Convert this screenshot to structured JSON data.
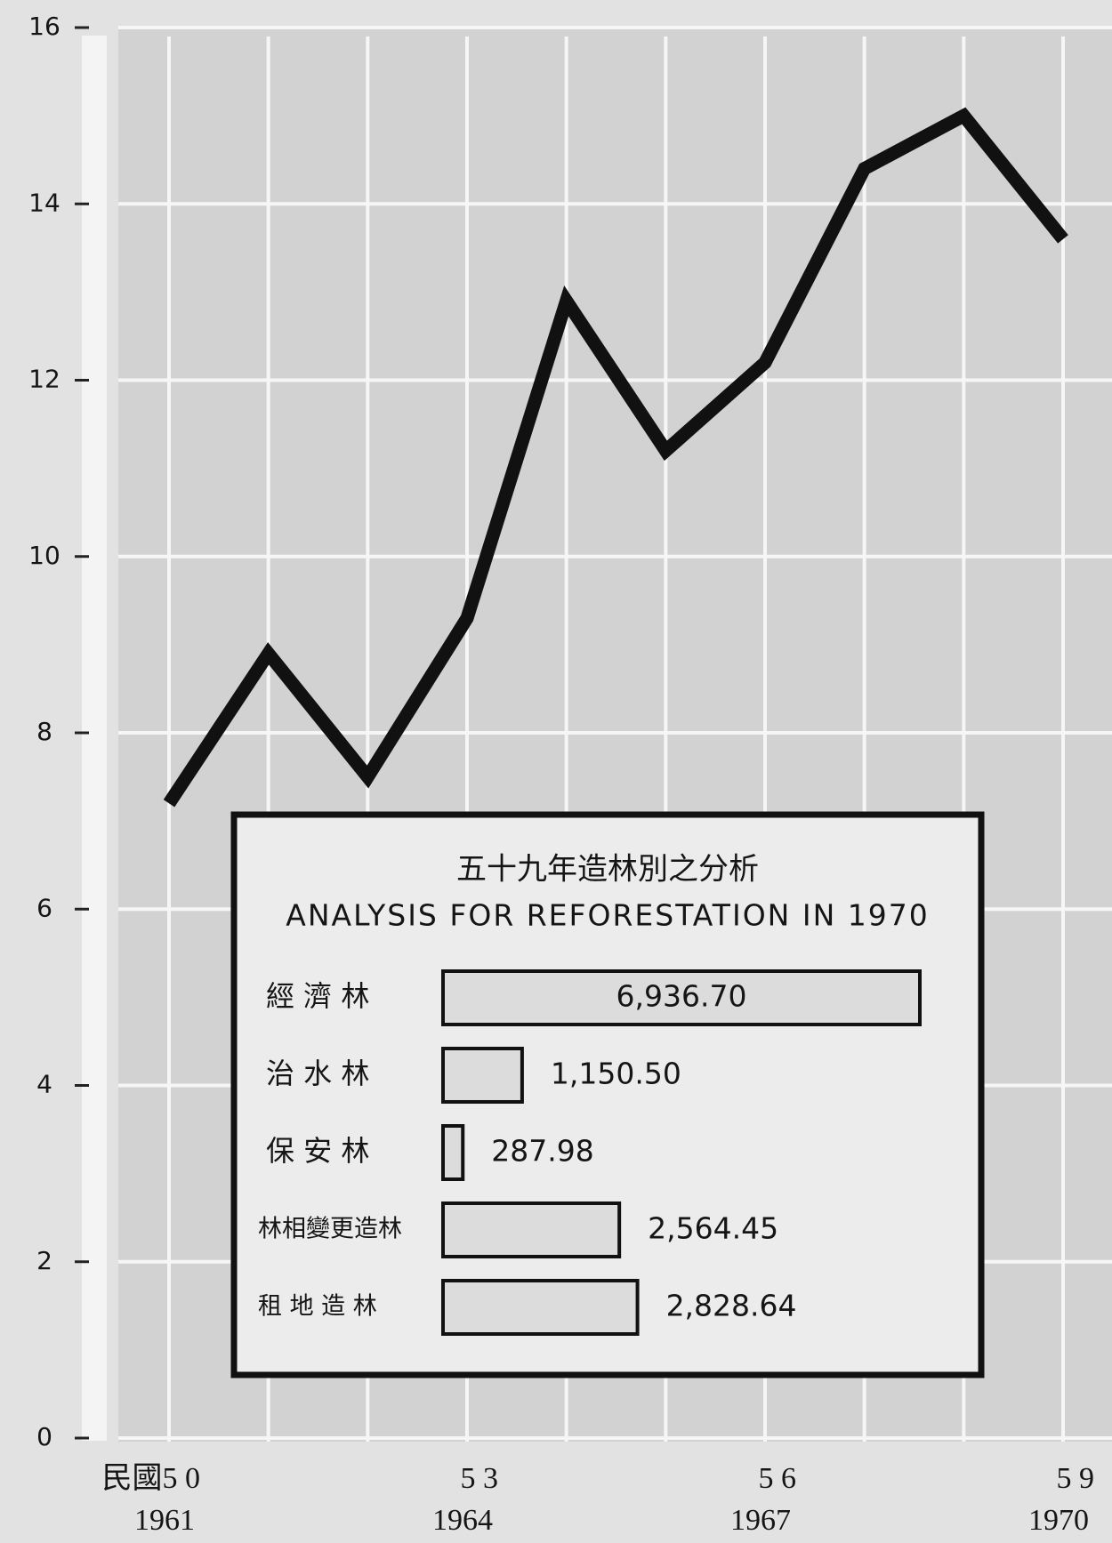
{
  "chart_data": [
    {
      "type": "line",
      "categories": [
        "1961",
        null,
        null,
        "1964",
        null,
        null,
        "1967",
        null,
        null,
        "1970"
      ],
      "roc_labels": [
        "民國5 0",
        null,
        null,
        "5 3",
        null,
        null,
        "5 6",
        null,
        null,
        "5 9"
      ],
      "series": [
        {
          "color": "#111111",
          "values": [
            7.2,
            8.9,
            7.5,
            9.3,
            12.9,
            11.2,
            12.2,
            14.4,
            15.0,
            13.6
          ]
        }
      ],
      "ylim": [
        0,
        16
      ],
      "yticks": [
        0,
        2,
        4,
        6,
        8,
        10,
        12,
        14,
        16
      ],
      "grid": true
    },
    {
      "type": "bar",
      "title": "五十九年造林別之分析",
      "subtitle": "ANALYSIS FOR REFORESTATION IN 1970",
      "categories": [
        "經 濟 林",
        "治 水 林",
        "保 安 林",
        "林相變更造林",
        "租 地 造 林"
      ],
      "values": [
        6936.7,
        1150.5,
        287.98,
        2564.45,
        2828.64
      ],
      "value_labels": [
        "6,936.70",
        "1,150.50",
        "287.98",
        "2,564.45",
        "2,828.64"
      ],
      "color": "#dcdcdc",
      "orientation": "horizontal"
    }
  ]
}
